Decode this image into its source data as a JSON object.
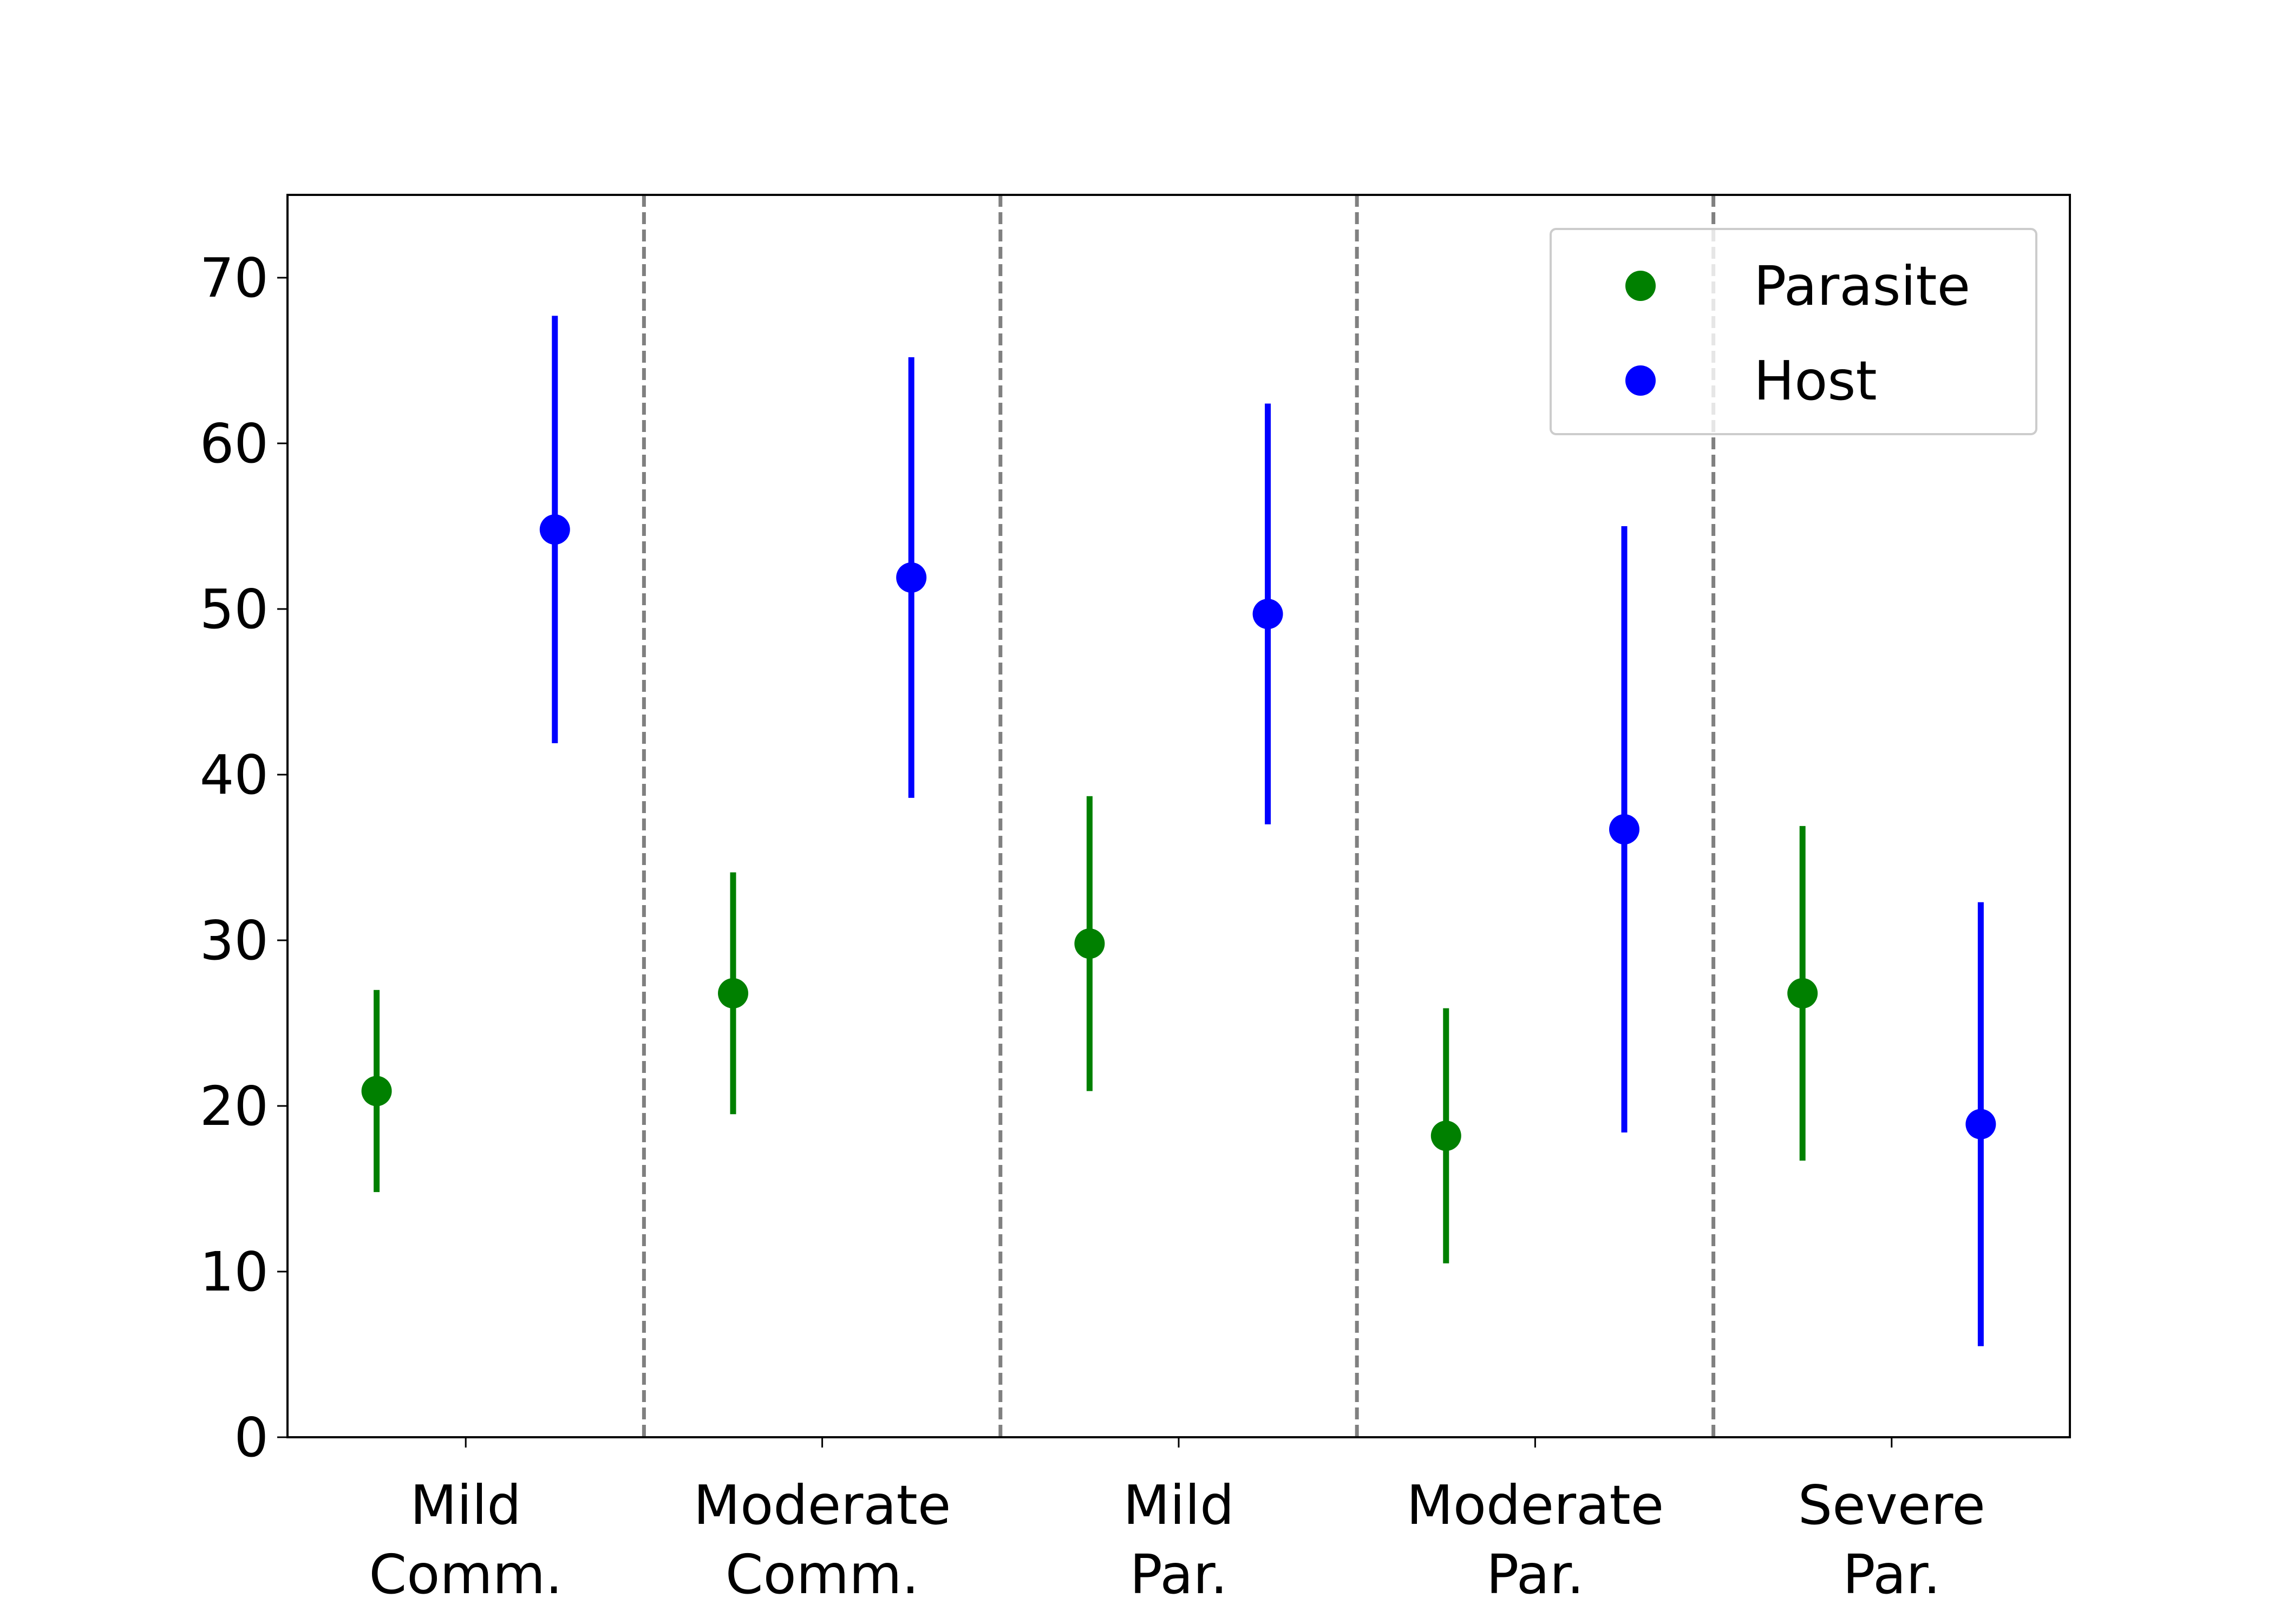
{
  "chart_data": {
    "type": "errorbar",
    "categories": [
      [
        "Mild",
        "Comm."
      ],
      [
        "Moderate",
        "Comm."
      ],
      [
        "Mild",
        "Par."
      ],
      [
        "Moderate",
        "Par."
      ],
      [
        "Severe",
        "Par."
      ]
    ],
    "series": [
      {
        "name": "Parasite",
        "color": "#008000",
        "values": [
          20.9,
          26.8,
          29.8,
          18.2,
          26.8
        ],
        "errors": [
          6.1,
          7.3,
          8.9,
          7.7,
          10.1
        ]
      },
      {
        "name": "Host",
        "color": "#0000ff",
        "values": [
          54.8,
          51.9,
          49.7,
          36.7,
          18.9
        ],
        "errors": [
          12.9,
          13.3,
          12.7,
          18.3,
          13.4
        ]
      }
    ],
    "ylim": [
      0,
      75
    ],
    "yticks": [
      0,
      10,
      20,
      30,
      40,
      50,
      60,
      70
    ],
    "category_dividers": true,
    "legend": "upper right"
  }
}
